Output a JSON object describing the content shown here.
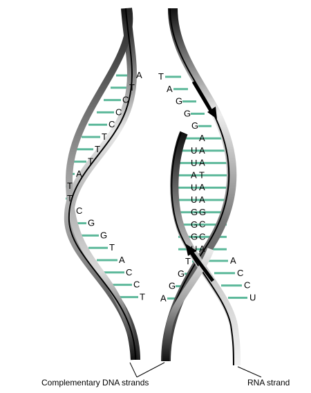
{
  "diagram": {
    "left_strand_bases": [
      "A",
      "T",
      "C",
      "C",
      "C",
      "T",
      "T",
      "T",
      "A",
      "T",
      "T",
      "C",
      "G",
      "G",
      "T",
      "A",
      "C",
      "C",
      "T"
    ],
    "right_template_bases": [
      "T",
      "A",
      "G",
      "G",
      "G",
      "A",
      "A",
      "A",
      "T",
      "A",
      "A",
      "G",
      "C",
      "C",
      "A",
      "T",
      "G",
      "G",
      "A"
    ],
    "rna_bases": [
      "U",
      "U",
      "A",
      "U",
      "U",
      "G",
      "G",
      "G",
      "U"
    ],
    "lower_right_dna_bases": [
      "A",
      "C",
      "C",
      "U"
    ],
    "labels": {
      "dna": "Complementary DNA strands",
      "rna": "RNA strand"
    },
    "colors": {
      "rung": "#5cb89a",
      "strand_dark": "#111111",
      "strand_mid": "#8a8a8a",
      "strand_light": "#e6e6e6"
    }
  }
}
